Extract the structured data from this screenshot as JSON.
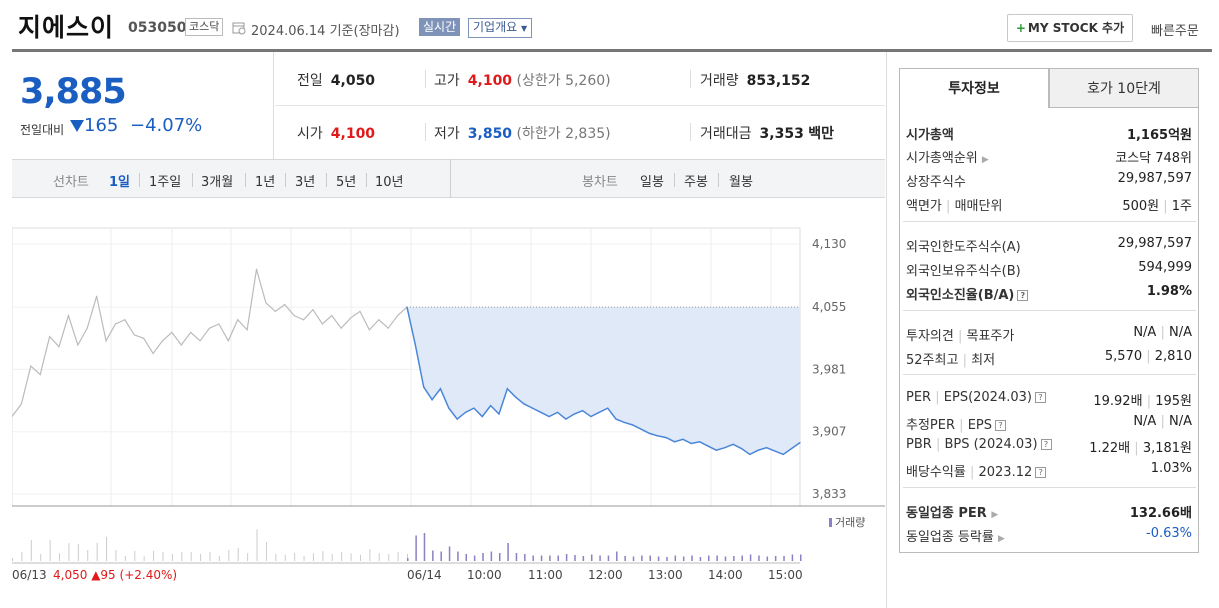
{
  "header": {
    "name": "지에스이",
    "code": "053050",
    "market": "코스닥",
    "date": "2024.06.14",
    "basis": "기준(장마감)",
    "realtime": "실시간",
    "corp_info": "기업개요",
    "mystock": "MY STOCK 추가",
    "quick_order": "빠른주문"
  },
  "price": {
    "current": "3,885",
    "change_label": "전일대비",
    "change_value": "165",
    "change_pct": "−4.07%"
  },
  "stats": {
    "prev_label": "전일",
    "prev": "4,050",
    "high_label": "고가",
    "high": "4,100",
    "upper_limit": "(상한가 5,260)",
    "volume_label": "거래량",
    "volume": "853,152",
    "open_label": "시가",
    "open": "4,100",
    "low_label": "저가",
    "low": "3,850",
    "lower_limit": "(하한가 2,835)",
    "amount_label": "거래대금",
    "amount": "3,353",
    "amount_unit": "백만"
  },
  "toolbar": {
    "line_label": "선차트",
    "periods": [
      "1일",
      "1주일",
      "3개월",
      "1년",
      "3년",
      "5년",
      "10년"
    ],
    "candle_label": "봉차트",
    "candles": [
      "일봉",
      "주봉",
      "월봉"
    ]
  },
  "chart_data": {
    "type": "line",
    "series": [
      {
        "name": "06/13",
        "color": "#bbbbbb",
        "values": [
          3925,
          3940,
          3985,
          3975,
          4020,
          4008,
          4045,
          4010,
          4030,
          4068,
          4015,
          4035,
          4040,
          4022,
          4018,
          4000,
          4015,
          4025,
          4010,
          4025,
          4015,
          4030,
          4035,
          4015,
          4040,
          4028,
          4100,
          4060,
          4050,
          4058,
          4045,
          4040,
          4052,
          4035,
          4045,
          4030,
          4042,
          4050,
          4028,
          4040,
          4030,
          4045,
          4055
        ]
      },
      {
        "name": "06/14",
        "color": "#4a86d8",
        "values": [
          4055,
          4010,
          3960,
          3945,
          3958,
          3935,
          3922,
          3930,
          3935,
          3925,
          3938,
          3928,
          3958,
          3948,
          3940,
          3935,
          3930,
          3925,
          3930,
          3922,
          3928,
          3932,
          3925,
          3930,
          3935,
          3922,
          3918,
          3915,
          3910,
          3905,
          3902,
          3900,
          3895,
          3898,
          3893,
          3895,
          3890,
          3885,
          3888,
          3892,
          3887,
          3880,
          3885,
          3888,
          3884,
          3880,
          3887,
          3894
        ]
      }
    ],
    "y_ticks": [
      "4,130",
      "4,055",
      "3,981",
      "3,907",
      "3,833"
    ],
    "ylim": [
      3833,
      4130
    ],
    "reference": 4055,
    "x_labels": [
      "06/13",
      "06/14",
      "10:00",
      "11:00",
      "12:00",
      "13:00",
      "14:00",
      "15:00"
    ],
    "legend": "거래량",
    "footer_prev": "4,050",
    "footer_change": "95 (+2.40%)"
  },
  "panel": {
    "tab_invest": "투자정보",
    "tab_hoga": "호가 10단계",
    "rows1": [
      {
        "k": "시가총액",
        "v": "1,165억원"
      },
      {
        "k": "시가총액순위",
        "v": "코스닥 748위"
      },
      {
        "k": "상장주식수",
        "v": "29,987,597"
      },
      {
        "k": "액면가",
        "k2": "매매단위",
        "v": "500원",
        "v2": "1주"
      }
    ],
    "rows2": [
      {
        "k": "외국인한도주식수(A)",
        "v": "29,987,597"
      },
      {
        "k": "외국인보유주식수(B)",
        "v": "594,999"
      },
      {
        "k": "외국인소진율(B/A)",
        "v": "1.98%"
      }
    ],
    "rows3": [
      {
        "k": "투자의견",
        "k2": "목표주가",
        "v": "N/A",
        "v2": "N/A"
      },
      {
        "k": "52주최고",
        "k2": "최저",
        "v": "5,570",
        "v2": "2,810"
      }
    ],
    "rows4": [
      {
        "k": "PER",
        "k2": "EPS(2024.03)",
        "v": "19.92배",
        "v2": "195원"
      },
      {
        "k": "추정PER",
        "k2": "EPS",
        "v": "N/A",
        "v2": "N/A"
      },
      {
        "k": "PBR",
        "k2": "BPS (2024.03)",
        "v": "1.22배",
        "v2": "3,181원"
      },
      {
        "k": "배당수익률",
        "k2": "2023.12",
        "v": "1.03%"
      }
    ],
    "rows5": [
      {
        "k": "동일업종 PER",
        "v": "132.66배"
      },
      {
        "k": "동일업종 등락률",
        "v": "-0.63%"
      }
    ]
  }
}
